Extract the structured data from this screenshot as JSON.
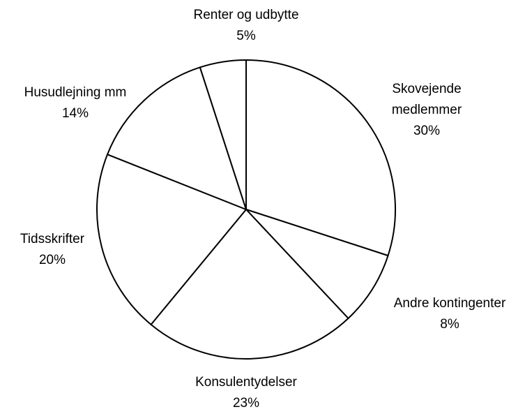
{
  "chart_data": {
    "type": "pie",
    "categories": [
      "Skovejende medlemmer",
      "Andre kontingenter",
      "Konsulentydelser",
      "Tidsskrifter",
      "Husudlejning mm",
      "Renter og udbytte"
    ],
    "values": [
      30,
      8,
      23,
      20,
      14,
      5
    ],
    "value_labels": [
      "30%",
      "8%",
      "23%",
      "20%",
      "14%",
      "5%"
    ],
    "color": "#ffffff"
  }
}
